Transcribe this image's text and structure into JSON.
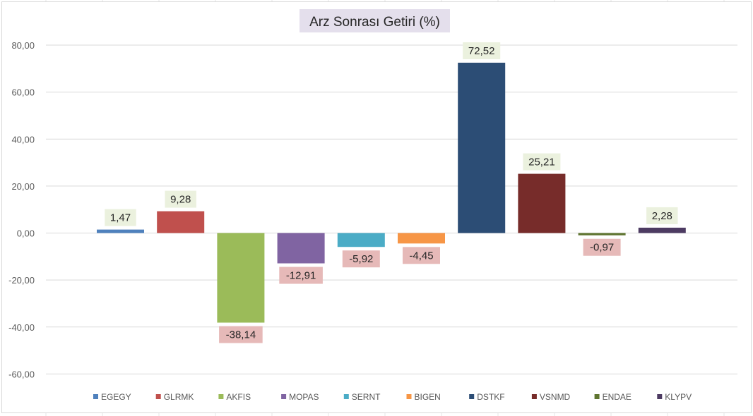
{
  "chart_data": {
    "type": "bar",
    "title": "Arz Sonrası Getiri (%)",
    "xlabel": "",
    "ylabel": "",
    "ylim": [
      -70,
      80
    ],
    "yticks": [
      "80,00",
      "60,00",
      "40,00",
      "20,00",
      "0,00",
      "-20,00",
      "-40,00",
      "-60,00"
    ],
    "ytick_values": [
      80,
      60,
      40,
      20,
      0,
      -20,
      -40,
      -60
    ],
    "grid": true,
    "legend_position": "bottom",
    "categories": [
      "EGEGY",
      "GLRMK",
      "AKFIS",
      "MOPAS",
      "SERNT",
      "BIGEN",
      "DSTKF",
      "VSNMD",
      "ENDAE",
      "KLYPV"
    ],
    "values": [
      1.47,
      9.28,
      -38.14,
      -12.91,
      -5.92,
      -4.45,
      72.52,
      25.21,
      -0.97,
      2.28
    ],
    "value_labels": [
      "1,47",
      "9,28",
      "-38,14",
      "-12,91",
      "-5,92",
      "-4,45",
      "72,52",
      "25,21",
      "-0,97",
      "2,28"
    ],
    "colors": [
      "#4f81bd",
      "#c0504d",
      "#9bbb59",
      "#8064a2",
      "#4bacc6",
      "#f79646",
      "#2c4d75",
      "#772c2a",
      "#5f7530",
      "#4d3b62"
    ],
    "positive_label_bg": "#ebf1de",
    "negative_label_bg": "#e6b9b8",
    "title_bg": "#e4dfec"
  }
}
